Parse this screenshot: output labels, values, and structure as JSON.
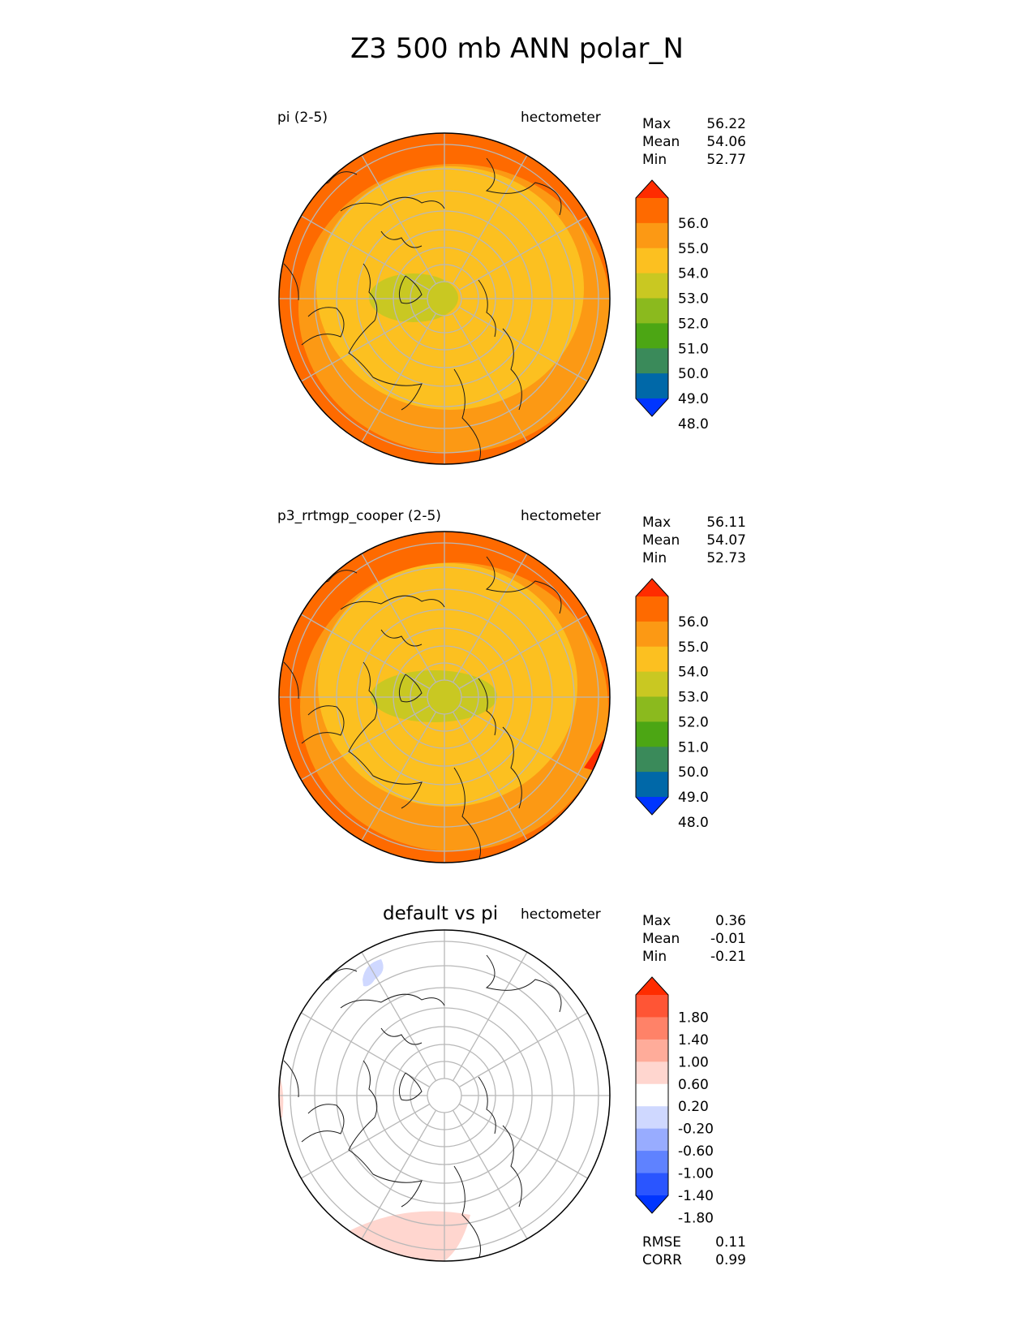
{
  "title": "Z3 500 mb ANN polar_N",
  "colors": {
    "abs": [
      "#0035ff",
      "#0068a8",
      "#3a8a5a",
      "#4ca614",
      "#8bba1e",
      "#c9c822",
      "#fcc020",
      "#fc9914",
      "#fe6a00",
      "#ff2c00"
    ],
    "diff": [
      "#0035ff",
      "#2a55ff",
      "#5f82ff",
      "#98acff",
      "#cfd8ff",
      "#ffffff",
      "#ffd6cf",
      "#ffac9a",
      "#ff8268",
      "#ff5535",
      "#ff2c00"
    ],
    "grid": "#b8b8b8",
    "coast": "#1a1a1a"
  },
  "panels": [
    {
      "left": "pi (2-5)",
      "center": "",
      "units": "hectometer",
      "stats": [
        {
          "label": "Max",
          "value": "56.22"
        },
        {
          "label": "Mean",
          "value": "54.06"
        },
        {
          "label": "Min",
          "value": "52.77"
        }
      ],
      "extra": []
    },
    {
      "left": "p3_rrtmgp_cooper (2-5)",
      "center": "",
      "units": "hectometer",
      "stats": [
        {
          "label": "Max",
          "value": "56.11"
        },
        {
          "label": "Mean",
          "value": "54.07"
        },
        {
          "label": "Min",
          "value": "52.73"
        }
      ],
      "extra": []
    },
    {
      "left": "",
      "center": "default vs pi",
      "units": "hectometer",
      "stats": [
        {
          "label": "Max",
          "value": "0.36"
        },
        {
          "label": "Mean",
          "value": "-0.01"
        },
        {
          "label": "Min",
          "value": "-0.21"
        }
      ],
      "extra": [
        {
          "label": "RMSE",
          "value": "0.11"
        },
        {
          "label": "CORR",
          "value": "0.99"
        }
      ]
    }
  ],
  "chart_data": [
    {
      "type": "heatmap",
      "title": "pi (2-5)",
      "units": "hectometer",
      "projection": "north polar stereographic",
      "colorbar_ticks": [
        "56.0",
        "55.0",
        "54.0",
        "53.0",
        "52.0",
        "51.0",
        "50.0",
        "49.0",
        "48.0"
      ],
      "colorbar_extend": "both",
      "max": 56.22,
      "mean": 54.06,
      "min": 52.77
    },
    {
      "type": "heatmap",
      "title": "p3_rrtmgp_cooper (2-5)",
      "units": "hectometer",
      "projection": "north polar stereographic",
      "colorbar_ticks": [
        "56.0",
        "55.0",
        "54.0",
        "53.0",
        "52.0",
        "51.0",
        "50.0",
        "49.0",
        "48.0"
      ],
      "colorbar_extend": "both",
      "max": 56.11,
      "mean": 54.07,
      "min": 52.73
    },
    {
      "type": "heatmap",
      "title": "default vs pi",
      "units": "hectometer",
      "projection": "north polar stereographic",
      "colorbar_ticks": [
        "1.80",
        "1.40",
        "1.00",
        "0.60",
        "0.20",
        "-0.20",
        "-0.60",
        "-1.00",
        "-1.40",
        "-1.80"
      ],
      "colorbar_extend": "both",
      "max": 0.36,
      "mean": -0.01,
      "min": -0.21,
      "rmse": 0.11,
      "corr": 0.99
    }
  ]
}
